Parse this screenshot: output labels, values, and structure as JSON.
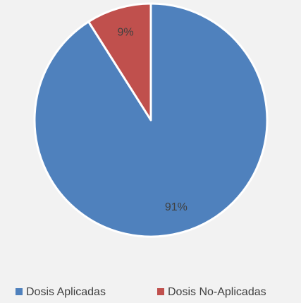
{
  "chart_data": {
    "type": "pie",
    "categories": [
      "Dosis Aplicadas",
      "Dosis No-Aplicadas"
    ],
    "values": [
      91,
      9
    ],
    "value_labels": [
      "91%",
      "9%"
    ],
    "colors": [
      "#4f81bd",
      "#c0504d"
    ],
    "legend": "bottom"
  }
}
